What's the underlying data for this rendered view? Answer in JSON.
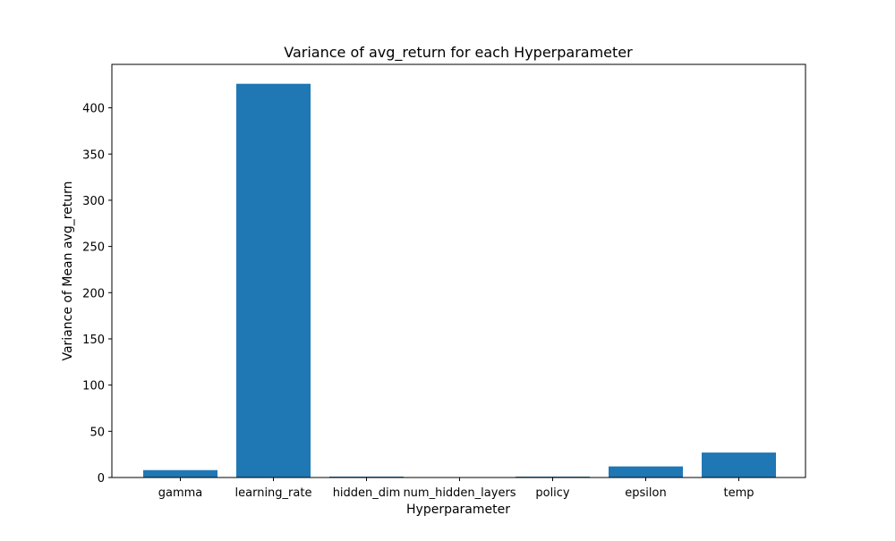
{
  "chart_data": {
    "type": "bar",
    "title": "Variance of avg_return for each Hyperparameter",
    "xlabel": "Hyperparameter",
    "ylabel": "Variance of Mean avg_return",
    "categories": [
      "gamma",
      "learning_rate",
      "hidden_dim",
      "num_hidden_layers",
      "policy",
      "epsilon",
      "temp"
    ],
    "values": [
      8.0,
      426.0,
      1.0,
      0.2,
      1.0,
      12.0,
      27.0
    ],
    "ylim": [
      0,
      447
    ],
    "yticks": [
      0,
      50,
      100,
      150,
      200,
      250,
      300,
      350,
      400
    ],
    "grid": false,
    "legend": "none",
    "bar_color": "#1f77b4"
  }
}
